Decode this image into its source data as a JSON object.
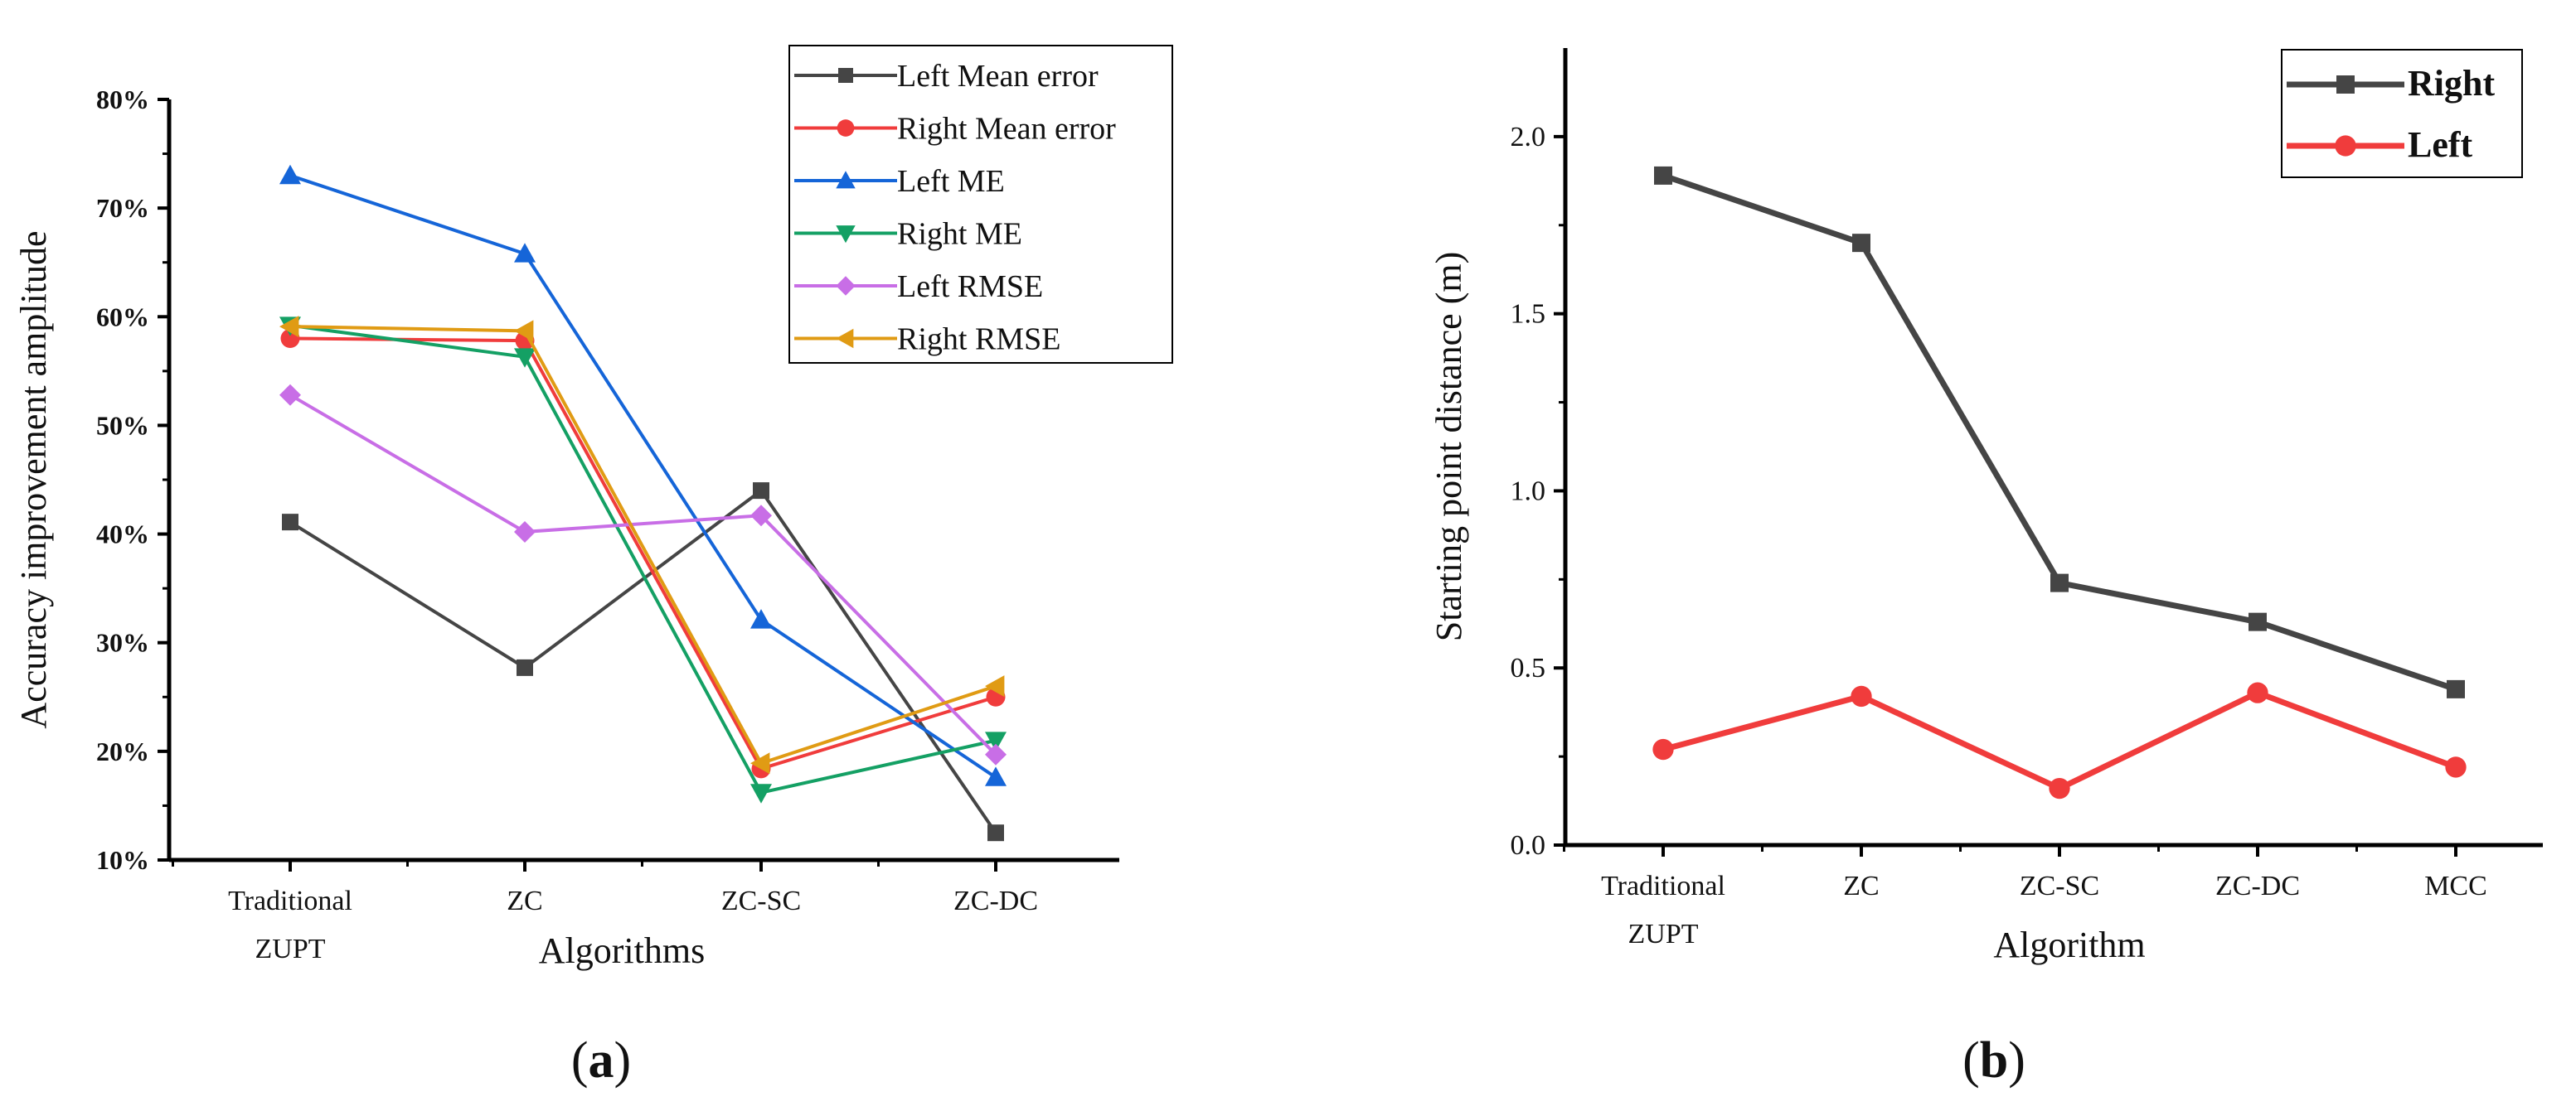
{
  "chart_data": [
    {
      "type": "line",
      "panel": "a",
      "panel_label": "a",
      "title": "",
      "xlabel": "Algorithms",
      "ylabel": "Accuracy improvement amplitude",
      "categories": [
        [
          "Traditional",
          "ZUPT"
        ],
        [
          "ZC"
        ],
        [
          "ZC-SC"
        ],
        [
          "ZC-DC"
        ]
      ],
      "ylim": [
        10,
        80
      ],
      "yticks": [
        10,
        20,
        30,
        40,
        50,
        60,
        70,
        80
      ],
      "ytick_labels": [
        "10%",
        "20%",
        "30%",
        "40%",
        "50%",
        "60%",
        "70%",
        "80%"
      ],
      "legend_position": "top-right",
      "series": [
        {
          "name": "Left Mean error",
          "color": "#454545",
          "marker": "square",
          "values": [
            41.1,
            27.7,
            44.0,
            12.5
          ]
        },
        {
          "name": "Right Mean error",
          "color": "#f03c3c",
          "marker": "circle",
          "values": [
            58.0,
            57.8,
            18.4,
            25.0
          ]
        },
        {
          "name": "Left ME",
          "color": "#1565d8",
          "marker": "triangle-up",
          "values": [
            73.0,
            65.8,
            32.1,
            17.6
          ]
        },
        {
          "name": "Right ME",
          "color": "#14a064",
          "marker": "triangle-down",
          "values": [
            59.2,
            56.3,
            16.2,
            21.0
          ]
        },
        {
          "name": "Left RMSE",
          "color": "#c86ee6",
          "marker": "diamond",
          "values": [
            52.8,
            40.2,
            41.7,
            19.7
          ]
        },
        {
          "name": "Right RMSE",
          "color": "#e09b14",
          "marker": "triangle-left",
          "values": [
            59.1,
            58.7,
            18.9,
            26.0
          ]
        }
      ]
    },
    {
      "type": "line",
      "panel": "b",
      "panel_label": "b",
      "title": "",
      "xlabel": "Algorithm",
      "ylabel": "Starting point distance (m)",
      "categories": [
        [
          "Traditional",
          "ZUPT"
        ],
        [
          "ZC"
        ],
        [
          "ZC-SC"
        ],
        [
          "ZC-DC"
        ],
        [
          "MCC"
        ]
      ],
      "ylim": [
        0.0,
        2.25
      ],
      "yticks": [
        0.0,
        0.5,
        1.0,
        1.5,
        2.0
      ],
      "ytick_labels": [
        "0.0",
        "0.5",
        "1.0",
        "1.5",
        "2.0"
      ],
      "legend_position": "top-right",
      "series": [
        {
          "name": "Right",
          "color": "#454545",
          "marker": "square",
          "values": [
            1.89,
            1.7,
            0.74,
            0.63,
            0.44
          ]
        },
        {
          "name": "Left",
          "color": "#f03c3c",
          "marker": "circle",
          "values": [
            0.27,
            0.42,
            0.16,
            0.43,
            0.22
          ]
        }
      ]
    }
  ]
}
